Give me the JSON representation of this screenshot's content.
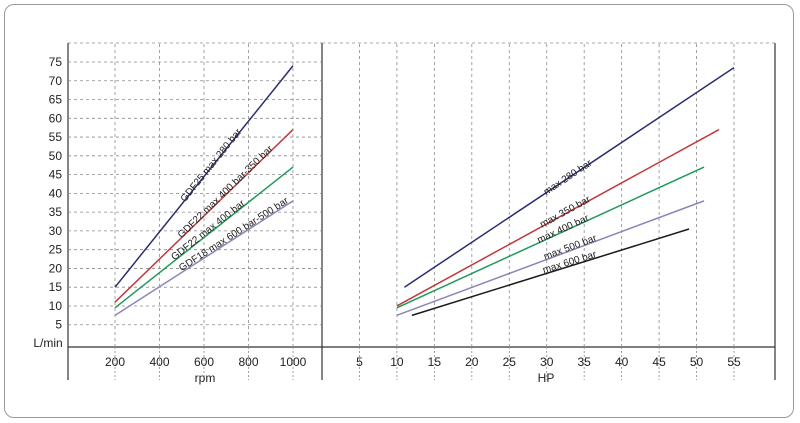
{
  "chart_data": [
    {
      "type": "line",
      "xlabel": "rpm",
      "ylabel": "L/min",
      "x_ticks": [
        200,
        400,
        600,
        800,
        1000
      ],
      "y_ticks": [
        5,
        10,
        15,
        20,
        25,
        30,
        35,
        40,
        45,
        50,
        55,
        60,
        65,
        70,
        75
      ],
      "xlim": [
        0,
        1100
      ],
      "ylim": [
        0,
        77
      ],
      "grid": true,
      "series": [
        {
          "name": "GDF25 max 280 bar",
          "color": "#2b2e6e",
          "x": [
            200,
            1000
          ],
          "y": [
            15,
            74
          ]
        },
        {
          "name": "GDF22 max 400 bar-350 bar",
          "color": "#c0393b",
          "x": [
            200,
            1000
          ],
          "y": [
            11,
            57
          ]
        },
        {
          "name": "GDF22 max 400 bar",
          "color": "#1e9a5a",
          "x": [
            200,
            1000
          ],
          "y": [
            9.5,
            47
          ]
        },
        {
          "name": "GDF18 max 600 bar-500 bar",
          "color": "#8a86b8",
          "x": [
            200,
            1000
          ],
          "y": [
            7.5,
            38
          ]
        }
      ]
    },
    {
      "type": "line",
      "xlabel": "HP",
      "x_ticks": [
        5,
        10,
        15,
        20,
        25,
        30,
        35,
        40,
        45,
        50,
        55
      ],
      "xlim": [
        0,
        60
      ],
      "ylim": [
        0,
        77
      ],
      "grid": true,
      "series": [
        {
          "name": "max 280 bar",
          "color": "#2b2e6e",
          "x": [
            11,
            55
          ],
          "y": [
            15,
            73.5
          ]
        },
        {
          "name": "max 350 bar",
          "color": "#c0393b",
          "x": [
            10,
            53
          ],
          "y": [
            10,
            57
          ]
        },
        {
          "name": "max 400 bar",
          "color": "#1e9a5a",
          "x": [
            10,
            51
          ],
          "y": [
            9.5,
            47
          ]
        },
        {
          "name": "max 500 bar",
          "color": "#8a86b8",
          "x": [
            10,
            51
          ],
          "y": [
            7.5,
            38
          ]
        },
        {
          "name": "max 600 bar",
          "color": "#1a1a1a",
          "x": [
            12,
            49
          ],
          "y": [
            7.5,
            30.5
          ]
        }
      ]
    }
  ]
}
